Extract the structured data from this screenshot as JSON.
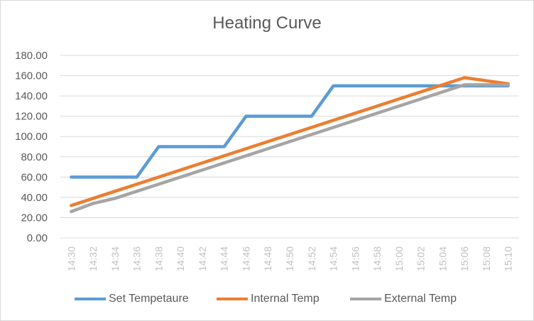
{
  "chart_data": {
    "type": "line",
    "title": "Heating Curve",
    "xlabel": "",
    "ylabel": "",
    "ylim": [
      0,
      180
    ],
    "y_ticks": [
      "0.00",
      "20.00",
      "40.00",
      "60.00",
      "80.00",
      "100.00",
      "120.00",
      "140.00",
      "160.00",
      "180.00"
    ],
    "categories": [
      "14:30",
      "14:32",
      "14:34",
      "14:36",
      "14:38",
      "14:40",
      "14:42",
      "14:44",
      "14:46",
      "14:48",
      "14:50",
      "14:52",
      "14:54",
      "14:56",
      "14:58",
      "15:00",
      "15:02",
      "15:04",
      "15:06",
      "15:08",
      "15:10"
    ],
    "grid": true,
    "legend_position": "bottom",
    "series": [
      {
        "name": "Set Tempetaure",
        "color": "#5b9bd5",
        "values": [
          60,
          60,
          60,
          60,
          90,
          90,
          90,
          90,
          120,
          120,
          120,
          120,
          150,
          150,
          150,
          150,
          150,
          150,
          150,
          150,
          150
        ]
      },
      {
        "name": "Internal Temp",
        "color": "#ed7d31",
        "values": [
          32,
          39,
          46,
          53,
          60,
          67,
          74,
          81,
          88,
          95,
          102,
          109,
          116,
          123,
          130,
          137,
          144,
          151,
          158,
          155,
          152
        ]
      },
      {
        "name": "External Temp",
        "color": "#a5a5a5",
        "values": [
          26,
          34,
          39,
          46,
          53,
          60,
          67,
          74,
          81,
          88,
          95,
          102,
          109,
          116,
          123,
          130,
          137,
          144,
          151,
          151,
          151
        ]
      }
    ]
  }
}
